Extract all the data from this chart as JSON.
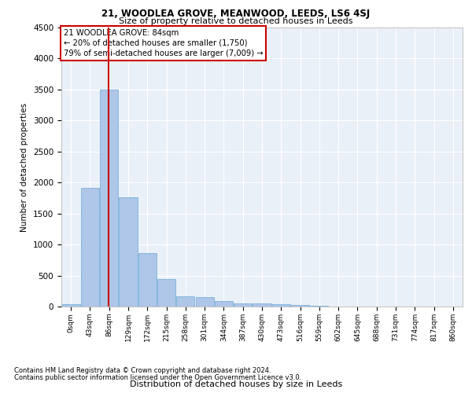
{
  "title1": "21, WOODLEA GROVE, MEANWOOD, LEEDS, LS6 4SJ",
  "title2": "Size of property relative to detached houses in Leeds",
  "xlabel": "Distribution of detached houses by size in Leeds",
  "ylabel": "Number of detached properties",
  "bar_color": "#aec6e8",
  "bar_edge_color": "#6aaad4",
  "background_color": "#eaf0f8",
  "annotation_box_color": "#cc0000",
  "property_line_color": "#cc0000",
  "property_value": 84,
  "annotation_text": "21 WOODLEA GROVE: 84sqm\n← 20% of detached houses are smaller (1,750)\n79% of semi-detached houses are larger (7,009) →",
  "bin_labels": [
    "0sqm",
    "43sqm",
    "86sqm",
    "129sqm",
    "172sqm",
    "215sqm",
    "258sqm",
    "301sqm",
    "344sqm",
    "387sqm",
    "430sqm",
    "473sqm",
    "516sqm",
    "559sqm",
    "602sqm",
    "645sqm",
    "688sqm",
    "731sqm",
    "774sqm",
    "817sqm",
    "860sqm"
  ],
  "bar_values": [
    40,
    1920,
    3500,
    1760,
    860,
    450,
    160,
    150,
    90,
    55,
    55,
    35,
    20,
    10,
    5,
    3,
    2,
    1,
    1,
    0,
    0
  ],
  "ylim": [
    0,
    4500
  ],
  "yticks": [
    0,
    500,
    1000,
    1500,
    2000,
    2500,
    3000,
    3500,
    4000,
    4500
  ],
  "footer_line1": "Contains HM Land Registry data © Crown copyright and database right 2024.",
  "footer_line2": "Contains public sector information licensed under the Open Government Licence v3.0."
}
